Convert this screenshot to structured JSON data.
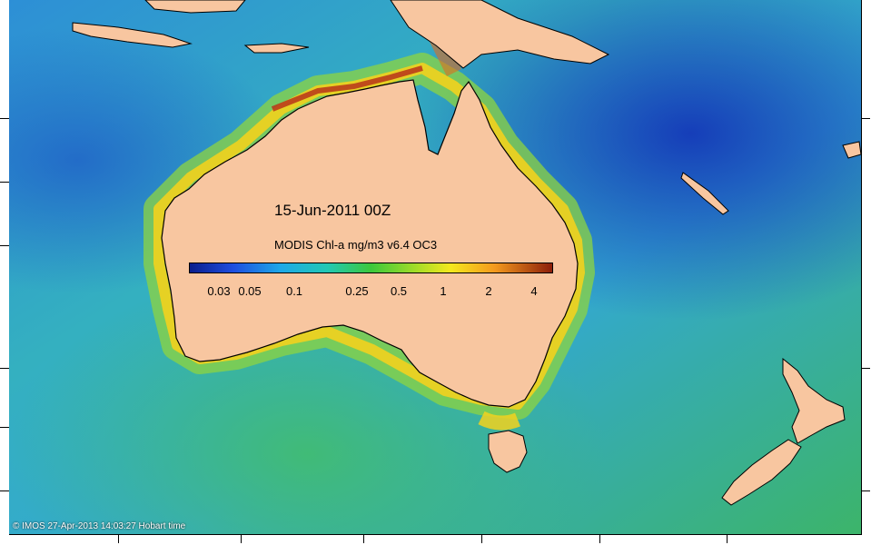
{
  "map": {
    "date_label": "15-Jun-2011 00Z",
    "legend_title": "MODIS Chl-a mg/m3 v6.4 OC3",
    "colorbar_ticks": [
      "0.03",
      "0.05",
      "0.1",
      "0.25",
      "0.5",
      "1",
      "2",
      "4"
    ],
    "credit": "© IMOS 27-Apr-2013 14:03:27 Hobart time"
  },
  "colors": {
    "land": "#f8c6a0",
    "ocean_low": "#1a4fc8",
    "ocean_mid": "#2fa8d8",
    "ocean_high": "#3cc05a",
    "coastal_high": "#f2d21e",
    "coastal_peak": "#b8341a"
  }
}
